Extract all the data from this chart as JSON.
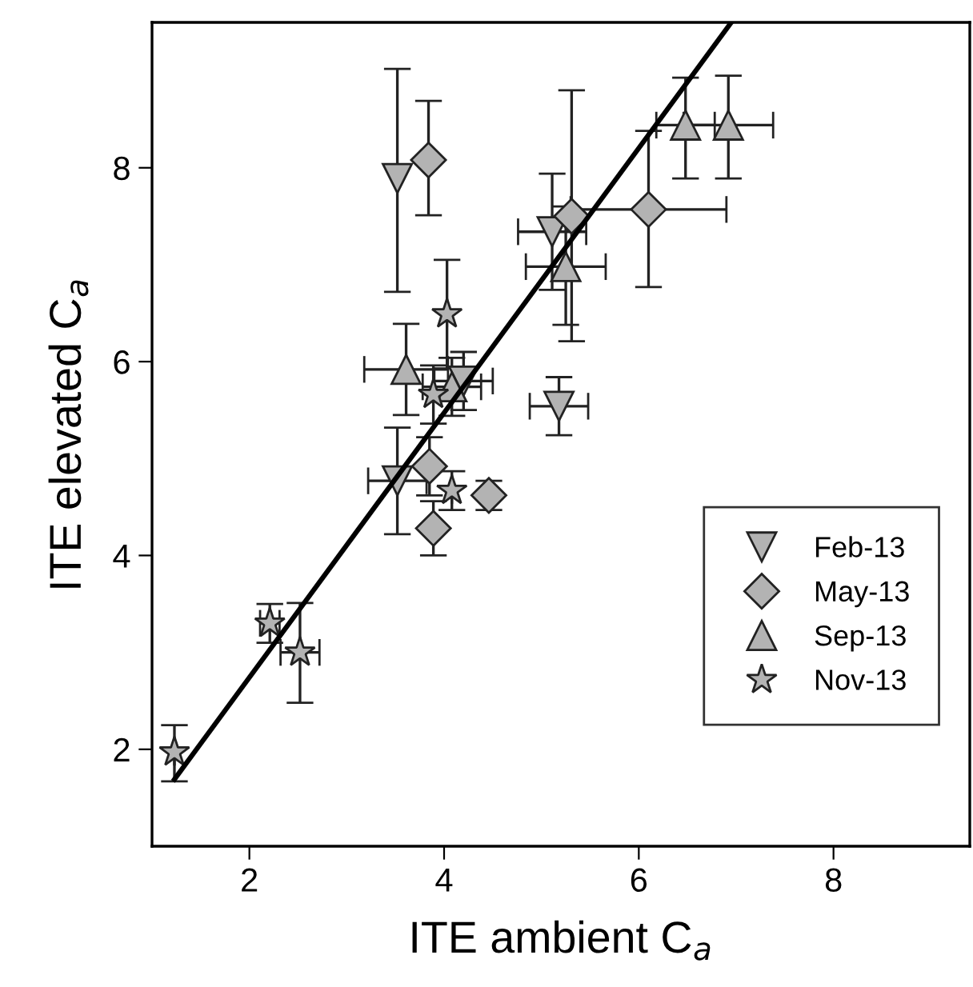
{
  "chart_data": {
    "type": "scatter",
    "xlabel": "ITE ambient C$_{a}$",
    "ylabel": "ITE elevated C$_{a}$",
    "xlim": [
      1.0,
      9.4
    ],
    "ylim": [
      1.0,
      9.5
    ],
    "xticks": [
      2,
      4,
      6,
      8
    ],
    "yticks": [
      2,
      4,
      6,
      8
    ],
    "grid": false,
    "legend": "bottom right",
    "series": [
      {
        "name": "Feb-13",
        "color": "#b3b3b3",
        "marker": "triangle_down",
        "x": [
          3.52,
          5.11,
          5.18,
          3.52,
          4.2
        ],
        "values": [
          7.89,
          7.34,
          5.54,
          4.77,
          5.8
        ],
        "errors": [
          [
            6.72,
            9.02
          ],
          0.6,
          0.3,
          0.55,
          0.3
        ],
        "xerrors": [
          null,
          0.35,
          0.3,
          0.3,
          0.3
        ]
      },
      {
        "name": "May-13",
        "color": "#b3b3b3",
        "marker": "diamond",
        "x": [
          3.84,
          5.31,
          6.1,
          3.85,
          4.46,
          3.89
        ],
        "values": [
          8.08,
          7.5,
          7.57,
          4.92,
          4.62,
          4.28
        ],
        "errors": [
          [
            7.51,
            8.69
          ],
          [
            6.21,
            8.8
          ],
          [
            6.77,
            8.38
          ],
          0.3,
          0.15,
          0.28
        ],
        "xerrors": [
          null,
          null,
          0.8,
          null,
          null,
          null
        ]
      },
      {
        "name": "Sep-13",
        "color": "#b3b3b3",
        "marker": "triangle",
        "x": [
          6.48,
          6.92,
          5.25,
          3.61,
          4.08
        ],
        "values": [
          8.44,
          8.44,
          6.98,
          5.92,
          5.74
        ],
        "errors": [
          [
            7.89,
            8.93
          ],
          [
            7.89,
            8.95
          ],
          [
            6.38,
            7.6
          ],
          0.47,
          0.3
        ],
        "xerrors": [
          0.3,
          0.46,
          0.41,
          0.43,
          0.3
        ]
      },
      {
        "name": "Nov-13",
        "color": "#b3b3b3",
        "marker": "star",
        "x": [
          4.03,
          3.89,
          4.08,
          2.21,
          2.52,
          1.23
        ],
        "values": [
          6.49,
          5.66,
          4.67,
          3.3,
          3.0,
          1.97
        ],
        "errors": [
          0.56,
          0.3,
          0.2,
          0.2,
          [
            2.48,
            3.51
          ],
          [
            1.67,
            2.25
          ]
        ],
        "xerrors": [
          null,
          null,
          null,
          0.1,
          0.2,
          null
        ]
      },
      {
        "type": "line",
        "color": "#000000",
        "x": [
          1.23,
          6.95
        ],
        "values": [
          1.69,
          9.5
        ]
      }
    ]
  }
}
